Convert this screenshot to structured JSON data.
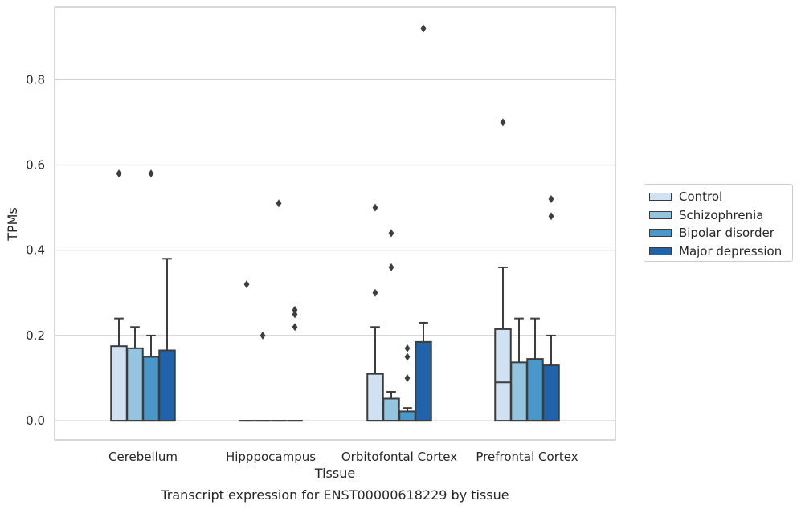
{
  "chart_data": {
    "type": "box",
    "caption": "Transcript expression for ENST00000618229 by tissue",
    "xlabel": "Tissue",
    "ylabel": "TPMs",
    "ylim": [
      -0.045,
      0.97
    ],
    "yticks": [
      "0.0",
      "0.2",
      "0.4",
      "0.6",
      "0.8"
    ],
    "grid": "horizontal",
    "legend_position": "right",
    "categories": [
      "Cerebellum",
      "Hipppocampus",
      "Orbitofontal Cortex",
      "Prefrontal Cortex"
    ],
    "series": [
      {
        "name": "Control",
        "color": "#d0e1f2"
      },
      {
        "name": "Schizophrenia",
        "color": "#94c4df"
      },
      {
        "name": "Bipolar disorder",
        "color": "#4a98c9"
      },
      {
        "name": "Major depression",
        "color": "#2163aa"
      }
    ],
    "boxes": [
      [
        {
          "q1": 0,
          "median": 0,
          "q3": 0.175,
          "whislo": 0,
          "whishi": 0.24,
          "fliers": [
            0.58
          ]
        },
        {
          "q1": 0,
          "median": 0,
          "q3": 0.17,
          "whislo": 0,
          "whishi": 0.22,
          "fliers": []
        },
        {
          "q1": 0,
          "median": 0,
          "q3": 0.15,
          "whislo": 0,
          "whishi": 0.2,
          "fliers": [
            0.58
          ]
        },
        {
          "q1": 0,
          "median": 0,
          "q3": 0.165,
          "whislo": 0,
          "whishi": 0.38,
          "fliers": []
        }
      ],
      [
        {
          "q1": 0,
          "median": 0,
          "q3": 0,
          "whislo": 0,
          "whishi": 0,
          "fliers": [
            0.32
          ]
        },
        {
          "q1": 0,
          "median": 0,
          "q3": 0,
          "whislo": 0,
          "whishi": 0,
          "fliers": [
            0.2
          ]
        },
        {
          "q1": 0,
          "median": 0,
          "q3": 0,
          "whislo": 0,
          "whishi": 0,
          "fliers": [
            0.51
          ]
        },
        {
          "q1": 0,
          "median": 0,
          "q3": 0,
          "whislo": 0,
          "whishi": 0,
          "fliers": [
            0.22,
            0.25,
            0.26
          ]
        }
      ],
      [
        {
          "q1": 0,
          "median": 0,
          "q3": 0.11,
          "whislo": 0,
          "whishi": 0.22,
          "fliers": [
            0.3,
            0.5
          ]
        },
        {
          "q1": 0,
          "median": 0,
          "q3": 0.052,
          "whislo": 0,
          "whishi": 0.068,
          "fliers": [
            0.36,
            0.44
          ]
        },
        {
          "q1": 0,
          "median": 0,
          "q3": 0.022,
          "whislo": 0,
          "whishi": 0.03,
          "fliers": [
            0.1,
            0.15,
            0.17
          ]
        },
        {
          "q1": 0,
          "median": 0,
          "q3": 0.185,
          "whislo": 0,
          "whishi": 0.23,
          "fliers": [
            0.92
          ]
        }
      ],
      [
        {
          "q1": 0,
          "median": 0.09,
          "q3": 0.215,
          "whislo": 0,
          "whishi": 0.36,
          "fliers": [
            0.7
          ]
        },
        {
          "q1": 0,
          "median": 0,
          "q3": 0.137,
          "whislo": 0,
          "whishi": 0.24,
          "fliers": []
        },
        {
          "q1": 0,
          "median": 0,
          "q3": 0.145,
          "whislo": 0,
          "whishi": 0.24,
          "fliers": []
        },
        {
          "q1": 0,
          "median": 0,
          "q3": 0.13,
          "whislo": 0,
          "whishi": 0.2,
          "fliers": [
            0.48,
            0.52
          ]
        }
      ]
    ]
  }
}
